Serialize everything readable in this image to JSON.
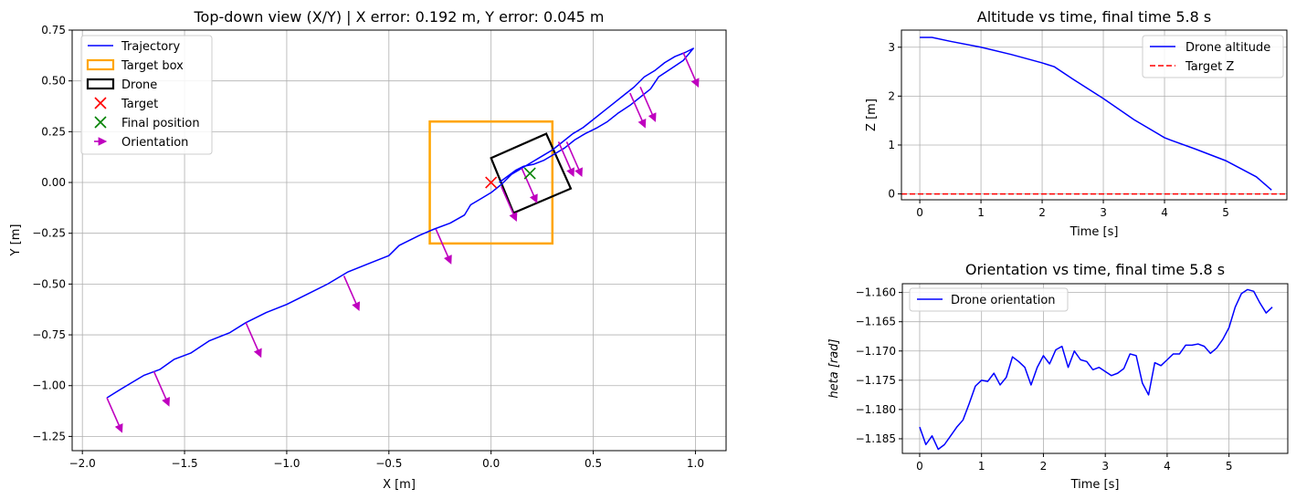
{
  "chart_data": [
    {
      "type": "scatter",
      "title": "Top-down view (X/Y) | X error: 0.192 m, Y error: 0.045 m",
      "xlabel": "X [m]",
      "ylabel": "Y [m]",
      "xlim": [
        -2.05,
        1.15
      ],
      "ylim": [
        -1.32,
        0.75
      ],
      "xticks": [
        -2.0,
        -1.5,
        -1.0,
        -0.5,
        0.0,
        0.5,
        1.0
      ],
      "xtick_labels": [
        "−2.0",
        "−1.5",
        "−1.0",
        "−0.5",
        "0.0",
        "0.5",
        "1.0"
      ],
      "yticks": [
        0.75,
        0.5,
        0.25,
        0.0,
        -0.25,
        -0.5,
        -0.75,
        -1.0,
        -1.25
      ],
      "ytick_labels": [
        "0.75",
        "0.50",
        "0.25",
        "0.00",
        "−0.25",
        "−0.50",
        "−0.75",
        "−1.00",
        "−1.25"
      ],
      "grid": true,
      "legend_position": "top-left",
      "legend": [
        {
          "label": "Trajectory",
          "kind": "line",
          "color": "#0000ff"
        },
        {
          "label": "Target box",
          "kind": "box",
          "color": "#ffa500"
        },
        {
          "label": "Drone",
          "kind": "box",
          "color": "#000000"
        },
        {
          "label": "Target",
          "kind": "x",
          "color": "#ff0000"
        },
        {
          "label": "Final position",
          "kind": "x",
          "color": "#008000"
        },
        {
          "label": "Orientation",
          "kind": "arrow",
          "color": "#bf00bf"
        }
      ],
      "trajectory": [
        [
          -1.88,
          -1.06
        ],
        [
          -1.8,
          -1.01
        ],
        [
          -1.7,
          -0.95
        ],
        [
          -1.62,
          -0.92
        ],
        [
          -1.55,
          -0.87
        ],
        [
          -1.47,
          -0.84
        ],
        [
          -1.38,
          -0.78
        ],
        [
          -1.28,
          -0.74
        ],
        [
          -1.2,
          -0.69
        ],
        [
          -1.1,
          -0.64
        ],
        [
          -1.0,
          -0.6
        ],
        [
          -0.9,
          -0.55
        ],
        [
          -0.8,
          -0.5
        ],
        [
          -0.7,
          -0.44
        ],
        [
          -0.6,
          -0.4
        ],
        [
          -0.5,
          -0.36
        ],
        [
          -0.45,
          -0.31
        ],
        [
          -0.35,
          -0.26
        ],
        [
          -0.28,
          -0.23
        ],
        [
          -0.2,
          -0.2
        ],
        [
          -0.13,
          -0.16
        ],
        [
          -0.1,
          -0.11
        ],
        [
          -0.05,
          -0.08
        ],
        [
          0.0,
          -0.05
        ],
        [
          0.05,
          -0.01
        ],
        [
          0.1,
          0.04
        ],
        [
          0.15,
          0.07
        ],
        [
          0.2,
          0.1
        ],
        [
          0.25,
          0.13
        ],
        [
          0.3,
          0.16
        ],
        [
          0.35,
          0.2
        ],
        [
          0.4,
          0.24
        ],
        [
          0.45,
          0.27
        ],
        [
          0.5,
          0.31
        ],
        [
          0.55,
          0.35
        ],
        [
          0.6,
          0.39
        ],
        [
          0.65,
          0.43
        ],
        [
          0.7,
          0.47
        ],
        [
          0.75,
          0.52
        ],
        [
          0.8,
          0.55
        ],
        [
          0.85,
          0.59
        ],
        [
          0.9,
          0.62
        ],
        [
          0.95,
          0.64
        ],
        [
          0.99,
          0.66
        ],
        [
          0.94,
          0.6
        ],
        [
          0.88,
          0.56
        ],
        [
          0.82,
          0.52
        ],
        [
          0.78,
          0.46
        ],
        [
          0.73,
          0.42
        ],
        [
          0.68,
          0.38
        ],
        [
          0.62,
          0.34
        ],
        [
          0.57,
          0.3
        ],
        [
          0.52,
          0.27
        ],
        [
          0.46,
          0.24
        ],
        [
          0.41,
          0.21
        ],
        [
          0.36,
          0.17
        ],
        [
          0.31,
          0.14
        ],
        [
          0.26,
          0.11
        ],
        [
          0.21,
          0.09
        ],
        [
          0.16,
          0.08
        ],
        [
          0.12,
          0.06
        ],
        [
          0.08,
          0.03
        ],
        [
          0.04,
          0.0
        ]
      ],
      "target_box": [
        [
          -0.3,
          -0.3
        ],
        [
          0.3,
          -0.3
        ],
        [
          0.3,
          0.3
        ],
        [
          -0.3,
          0.3
        ]
      ],
      "drone_box": [
        [
          0.0,
          0.12
        ],
        [
          0.27,
          0.24
        ],
        [
          0.39,
          -0.03
        ],
        [
          0.11,
          -0.15
        ]
      ],
      "target": [
        0.0,
        0.0
      ],
      "final_position": [
        0.19,
        0.045
      ],
      "orientation_arrows": [
        [
          -1.88,
          -1.06,
          0.07,
          -0.16
        ],
        [
          -1.65,
          -0.93,
          0.07,
          -0.16
        ],
        [
          -1.2,
          -0.69,
          0.07,
          -0.16
        ],
        [
          -0.72,
          -0.46,
          0.07,
          -0.16
        ],
        [
          -0.27,
          -0.23,
          0.07,
          -0.16
        ],
        [
          0.05,
          -0.02,
          0.07,
          -0.16
        ],
        [
          0.15,
          0.07,
          0.07,
          -0.16
        ],
        [
          0.33,
          0.2,
          0.07,
          -0.16
        ],
        [
          0.37,
          0.2,
          0.07,
          -0.16
        ],
        [
          0.68,
          0.44,
          0.07,
          -0.16
        ],
        [
          0.73,
          0.47,
          0.07,
          -0.16
        ],
        [
          0.94,
          0.64,
          0.07,
          -0.16
        ]
      ]
    },
    {
      "type": "line",
      "title": "Altitude vs time, final time 5.8 s",
      "xlabel": "Time [s]",
      "ylabel": "Z [m]",
      "xlim": [
        -0.3,
        6.0
      ],
      "ylim": [
        -0.12,
        3.35
      ],
      "xticks": [
        0,
        1,
        2,
        3,
        4,
        5
      ],
      "xtick_labels": [
        "0",
        "1",
        "2",
        "3",
        "4",
        "5"
      ],
      "yticks": [
        0,
        1,
        2,
        3
      ],
      "ytick_labels": [
        "0",
        "1",
        "2",
        "3"
      ],
      "grid": true,
      "legend_position": "top-right",
      "series": [
        {
          "name": "Drone altitude",
          "color": "#0000ff",
          "dash": "solid",
          "x": [
            0,
            0.2,
            0.5,
            1.0,
            1.5,
            2.0,
            2.2,
            2.5,
            3.0,
            3.5,
            4.0,
            4.1,
            4.5,
            5.0,
            5.5,
            5.75
          ],
          "y": [
            3.2,
            3.2,
            3.12,
            3.0,
            2.85,
            2.68,
            2.6,
            2.35,
            1.95,
            1.52,
            1.15,
            1.1,
            0.92,
            0.68,
            0.35,
            0.08
          ]
        },
        {
          "name": "Target Z",
          "color": "#ff0000",
          "dash": "dashed",
          "x": [
            -0.3,
            6.0
          ],
          "y": [
            0.0,
            0.0
          ]
        }
      ]
    },
    {
      "type": "line",
      "title": "Orientation vs time, final time 5.8 s",
      "xlabel": "Time [s]",
      "ylabel": "$heta$ [rad]",
      "ylabel_display": "heta [rad]",
      "xlim": [
        -0.28,
        5.95
      ],
      "ylim": [
        -1.1875,
        -1.1585
      ],
      "xticks": [
        0,
        1,
        2,
        3,
        4,
        5
      ],
      "xtick_labels": [
        "0",
        "1",
        "2",
        "3",
        "4",
        "5"
      ],
      "yticks": [
        -1.16,
        -1.165,
        -1.17,
        -1.175,
        -1.18,
        -1.185
      ],
      "ytick_labels": [
        "−1.160",
        "−1.165",
        "−1.170",
        "−1.175",
        "−1.180",
        "−1.185"
      ],
      "grid": true,
      "legend_position": "top-left",
      "series": [
        {
          "name": "Drone orientation",
          "color": "#0000ff",
          "dash": "solid",
          "x": [
            0.0,
            0.1,
            0.2,
            0.3,
            0.4,
            0.5,
            0.6,
            0.7,
            0.8,
            0.9,
            1.0,
            1.1,
            1.2,
            1.3,
            1.4,
            1.5,
            1.6,
            1.7,
            1.8,
            1.9,
            2.0,
            2.1,
            2.2,
            2.3,
            2.4,
            2.5,
            2.6,
            2.7,
            2.8,
            2.9,
            3.0,
            3.1,
            3.2,
            3.3,
            3.4,
            3.5,
            3.6,
            3.7,
            3.8,
            3.9,
            4.0,
            4.1,
            4.2,
            4.3,
            4.4,
            4.5,
            4.6,
            4.7,
            4.8,
            4.9,
            5.0,
            5.1,
            5.2,
            5.3,
            5.4,
            5.5,
            5.6,
            5.7
          ],
          "y": [
            -1.183,
            -1.186,
            -1.1845,
            -1.1868,
            -1.186,
            -1.1845,
            -1.183,
            -1.1818,
            -1.179,
            -1.176,
            -1.175,
            -1.1752,
            -1.1738,
            -1.1758,
            -1.1745,
            -1.171,
            -1.1718,
            -1.1728,
            -1.1758,
            -1.1728,
            -1.1708,
            -1.1722,
            -1.1698,
            -1.1692,
            -1.1728,
            -1.17,
            -1.1715,
            -1.1718,
            -1.1732,
            -1.1728,
            -1.1735,
            -1.1742,
            -1.1738,
            -1.173,
            -1.1705,
            -1.1708,
            -1.1755,
            -1.1775,
            -1.172,
            -1.1725,
            -1.1715,
            -1.1705,
            -1.1705,
            -1.169,
            -1.169,
            -1.1688,
            -1.1692,
            -1.1704,
            -1.1695,
            -1.168,
            -1.166,
            -1.1625,
            -1.1602,
            -1.1595,
            -1.1598,
            -1.1618,
            -1.1635,
            -1.1625
          ]
        }
      ]
    }
  ]
}
